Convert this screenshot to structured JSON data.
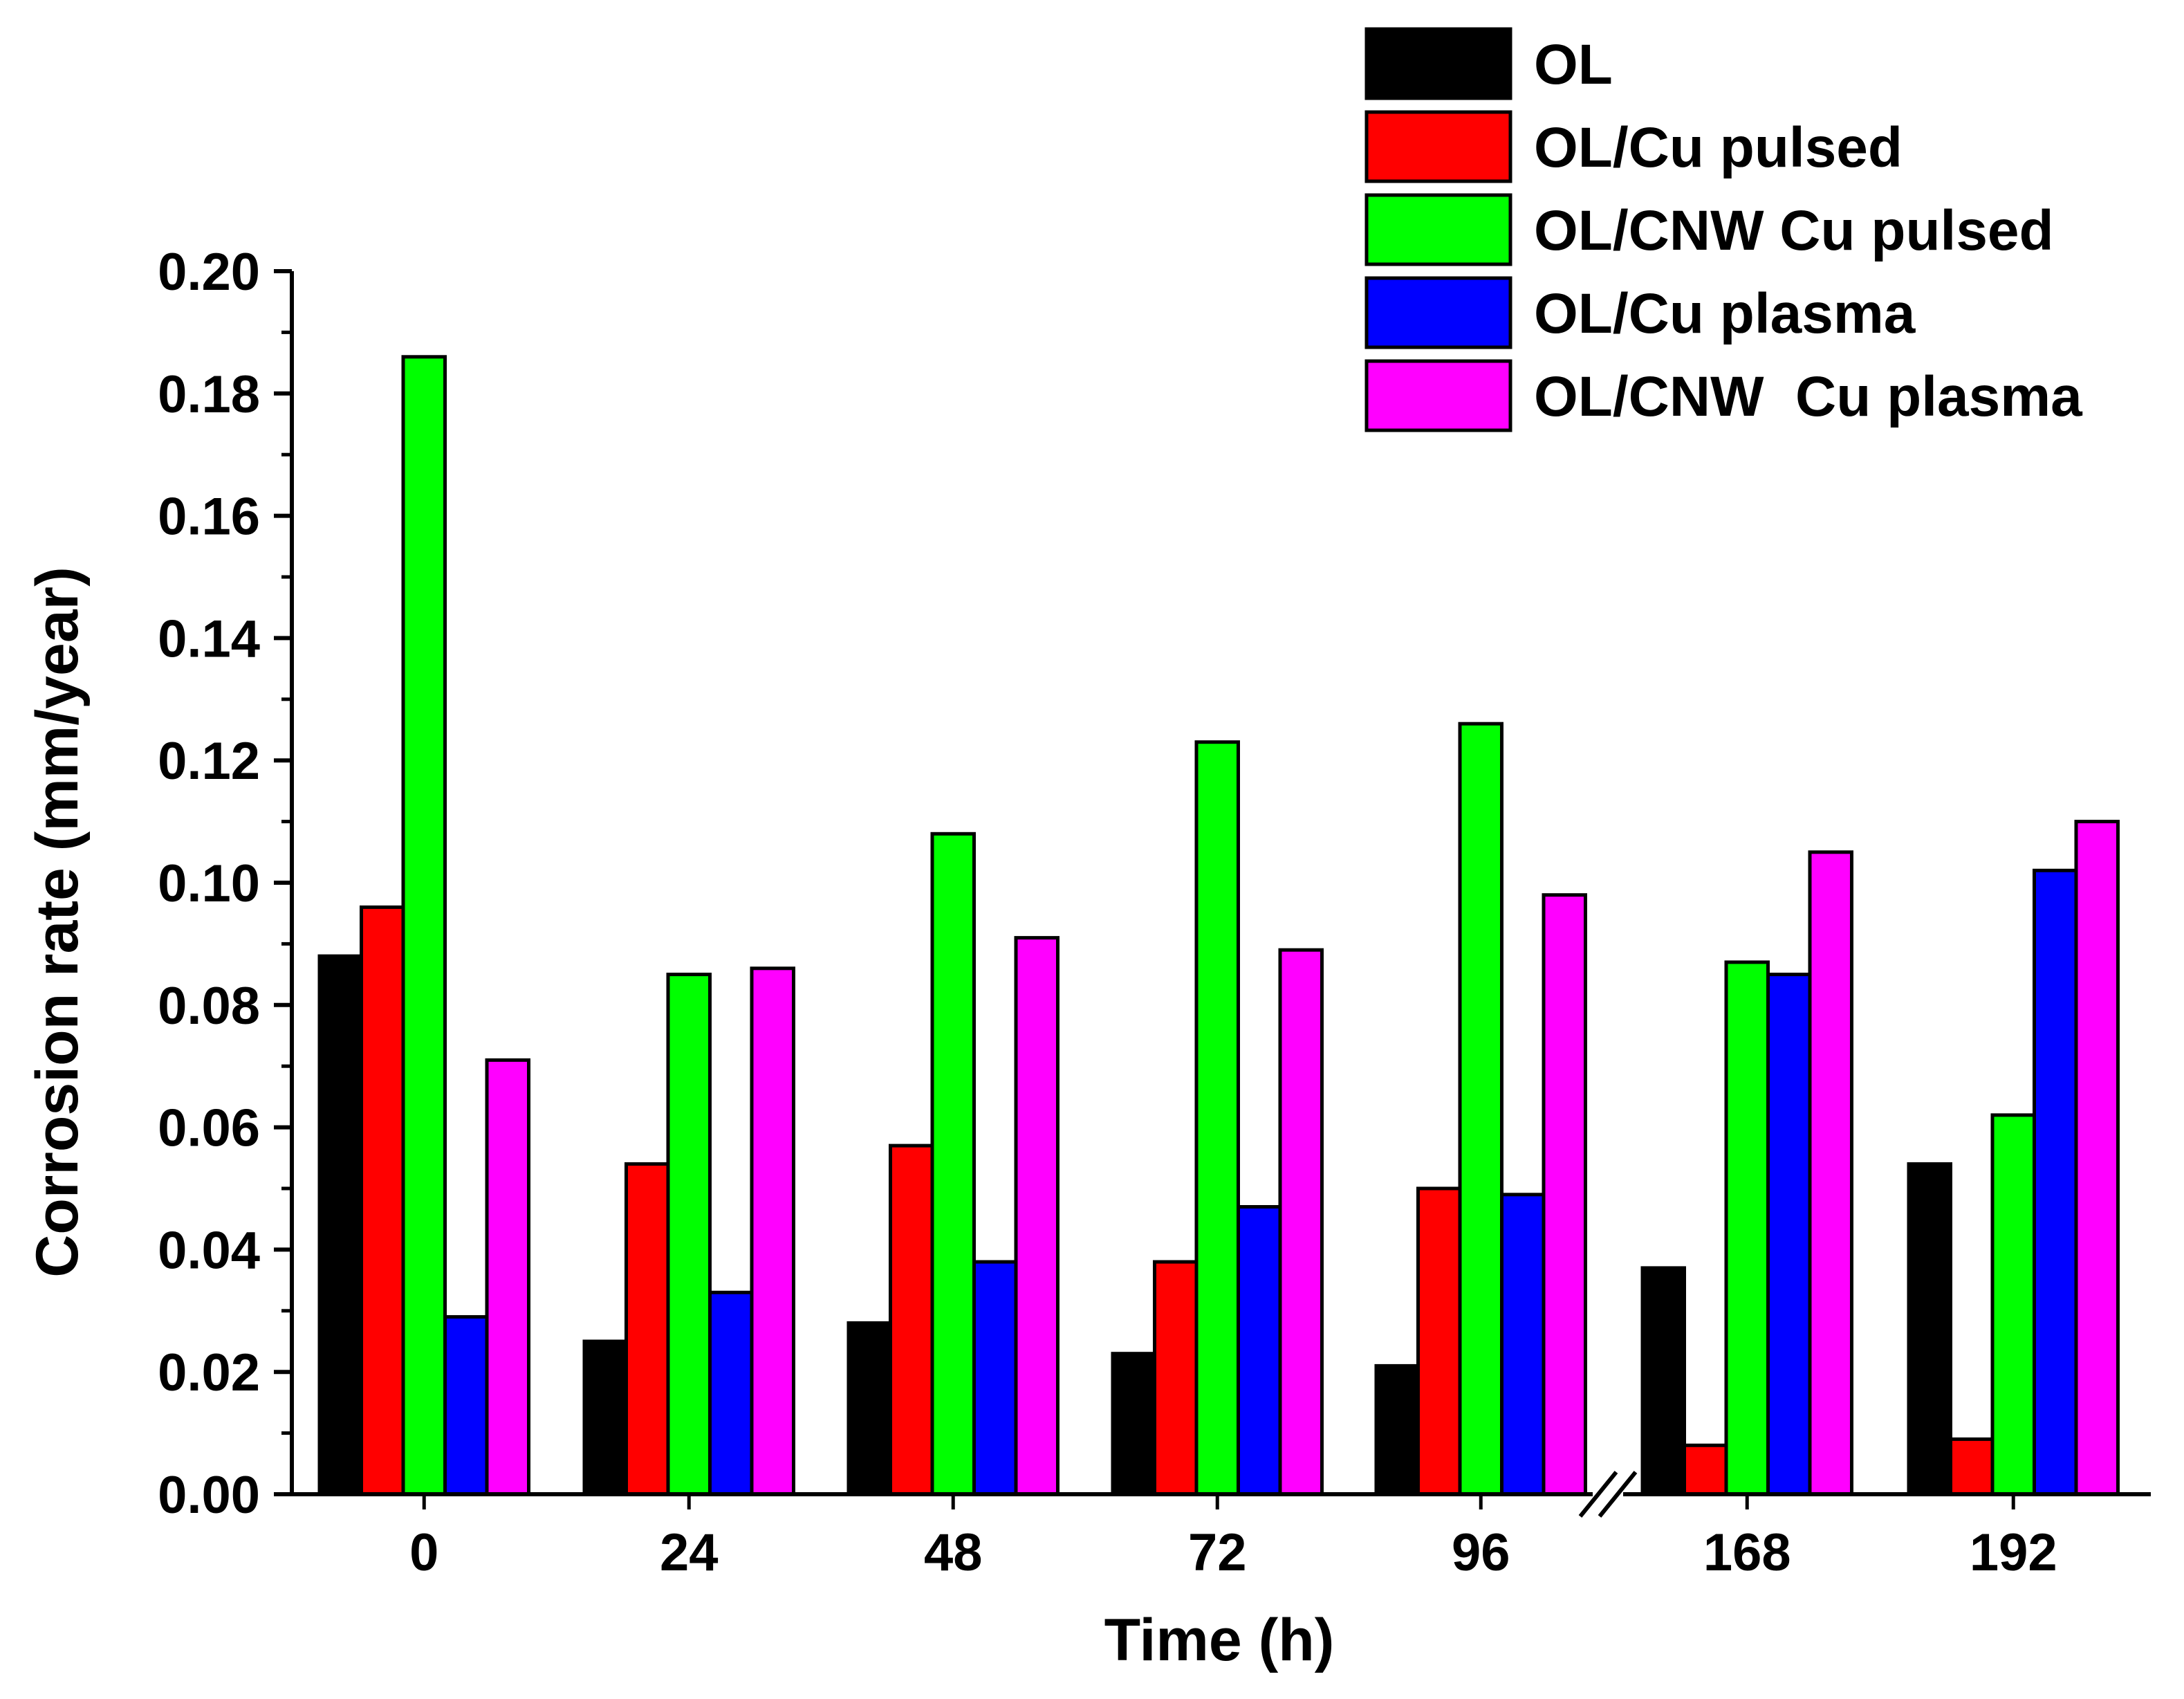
{
  "chart_data": {
    "type": "bar",
    "title": "",
    "xlabel": "Time (h)",
    "ylabel": "Corrosion rate (mm/year)",
    "ylim": [
      0,
      0.2
    ],
    "yticks": [
      "0.00",
      "0.02",
      "0.04",
      "0.06",
      "0.08",
      "0.10",
      "0.12",
      "0.14",
      "0.16",
      "0.18",
      "0.20"
    ],
    "categories": [
      "0",
      "24",
      "48",
      "72",
      "96",
      "168",
      "192"
    ],
    "axis_break": "between 96 and 168",
    "legend_position": "top-right",
    "series": [
      {
        "name": "OL",
        "color": "#000000",
        "values": [
          0.088,
          0.025,
          0.028,
          0.023,
          0.021,
          0.037,
          0.054
        ]
      },
      {
        "name": "OL/Cu pulsed",
        "color": "#ff0000",
        "values": [
          0.096,
          0.054,
          0.057,
          0.038,
          0.05,
          0.008,
          0.009
        ]
      },
      {
        "name": "OL/CNW Cu pulsed",
        "color": "#00ff00",
        "values": [
          0.186,
          0.085,
          0.108,
          0.123,
          0.126,
          0.087,
          0.062
        ]
      },
      {
        "name": "OL/Cu plasma",
        "color": "#0000ff",
        "values": [
          0.029,
          0.033,
          0.038,
          0.047,
          0.049,
          0.085,
          0.102
        ]
      },
      {
        "name": "OL/CNW  Cu plasma",
        "color": "#ff00ff",
        "values": [
          0.071,
          0.086,
          0.091,
          0.089,
          0.098,
          0.105,
          0.11
        ]
      }
    ]
  }
}
